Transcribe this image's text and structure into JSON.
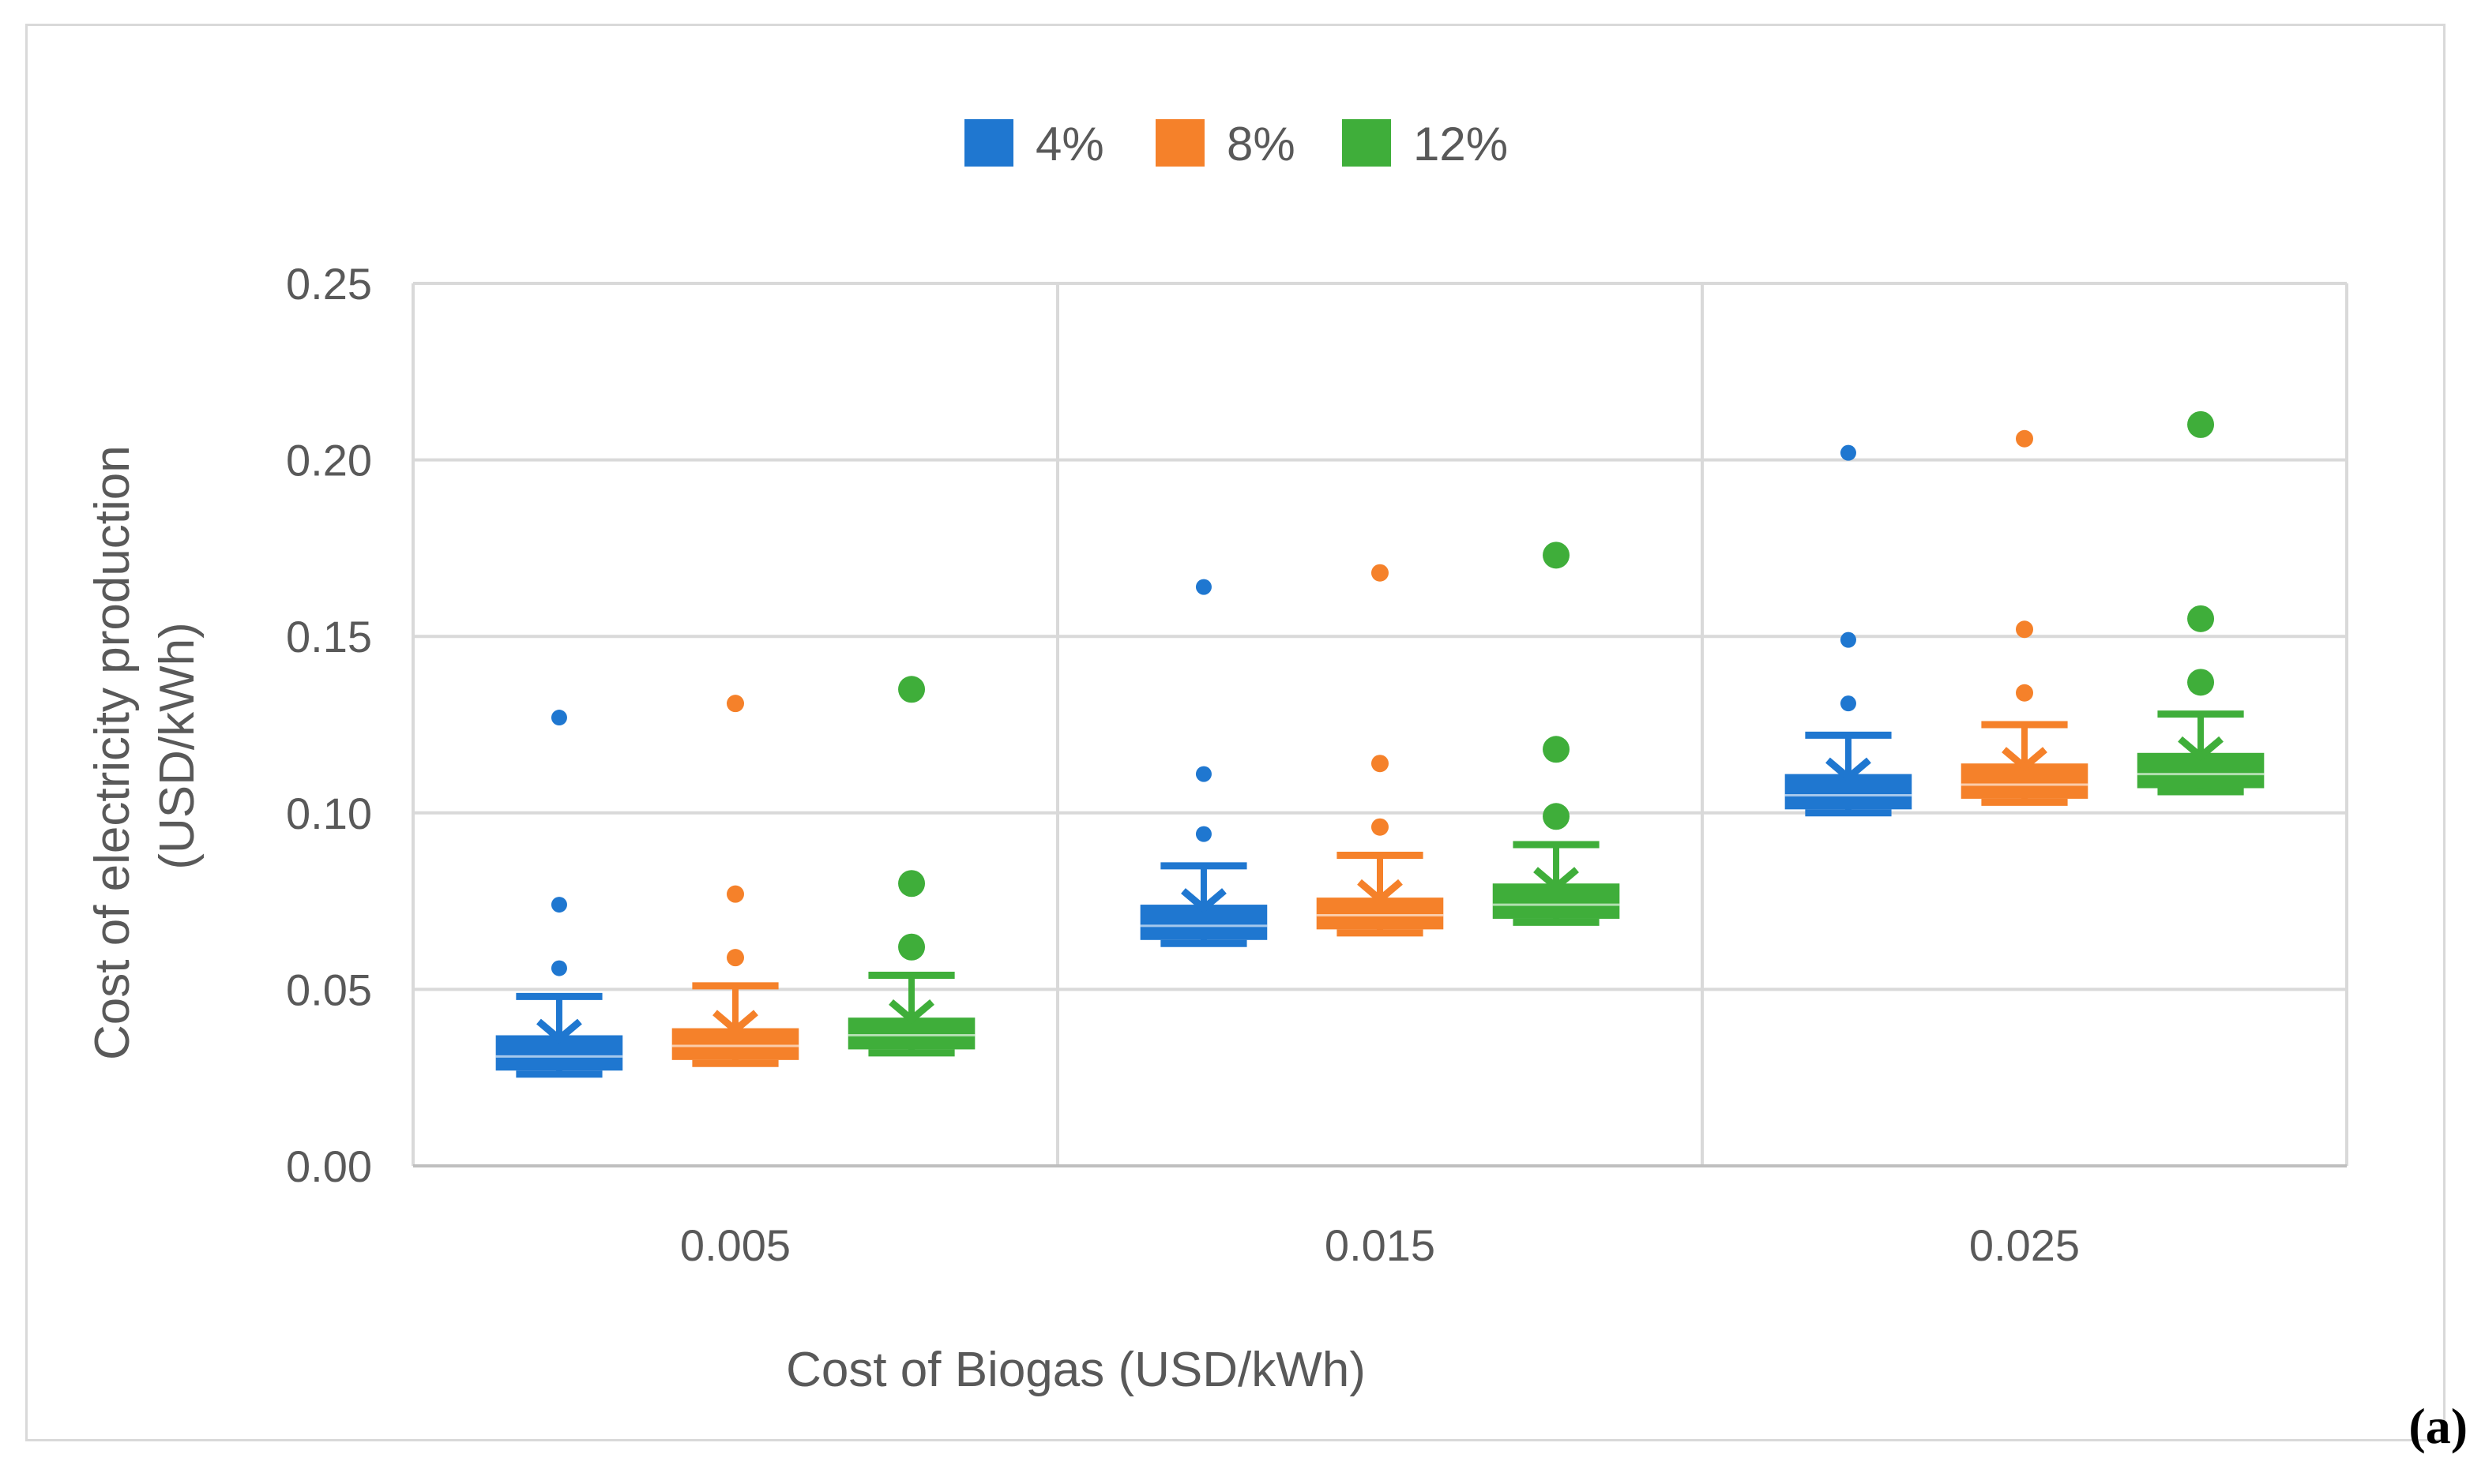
{
  "chart_data": {
    "type": "box",
    "title": "",
    "xlabel": "Cost of Biogas (USD/kWh)",
    "ylabel_lines": [
      "Cost of electricity production",
      "(USD/kWh)"
    ],
    "ylim": [
      0,
      0.25
    ],
    "y_ticks": [
      0.0,
      0.05,
      0.1,
      0.15,
      0.2,
      0.25
    ],
    "y_tick_labels": [
      "0.00",
      "0.05",
      "0.10",
      "0.15",
      "0.20",
      "0.25"
    ],
    "grid": true,
    "legend_position": "top-center",
    "categories": [
      "0.005",
      "0.015",
      "0.025"
    ],
    "series": [
      {
        "name": "4%",
        "color": "#1f77d0",
        "boxes": [
          {
            "whisker_low": 0.026,
            "q1": 0.027,
            "median": 0.031,
            "q3": 0.037,
            "whisker_high": 0.048,
            "outliers": [
              0.056,
              0.074,
              0.127
            ]
          },
          {
            "whisker_low": 0.063,
            "q1": 0.064,
            "median": 0.068,
            "q3": 0.074,
            "whisker_high": 0.085,
            "outliers": [
              0.094,
              0.111,
              0.164
            ]
          },
          {
            "whisker_low": 0.1,
            "q1": 0.101,
            "median": 0.105,
            "q3": 0.111,
            "whisker_high": 0.122,
            "outliers": [
              0.131,
              0.149,
              0.202
            ]
          }
        ]
      },
      {
        "name": "8%",
        "color": "#f5812a",
        "boxes": [
          {
            "whisker_low": 0.029,
            "q1": 0.03,
            "median": 0.034,
            "q3": 0.039,
            "whisker_high": 0.051,
            "outliers": [
              0.059,
              0.077,
              0.131
            ]
          },
          {
            "whisker_low": 0.066,
            "q1": 0.067,
            "median": 0.071,
            "q3": 0.076,
            "whisker_high": 0.088,
            "outliers": [
              0.096,
              0.114,
              0.168
            ]
          },
          {
            "whisker_low": 0.103,
            "q1": 0.104,
            "median": 0.108,
            "q3": 0.114,
            "whisker_high": 0.125,
            "outliers": [
              0.134,
              0.152,
              0.206
            ]
          }
        ]
      },
      {
        "name": "12%",
        "color": "#3fae3a",
        "boxes": [
          {
            "whisker_low": 0.032,
            "q1": 0.033,
            "median": 0.037,
            "q3": 0.042,
            "whisker_high": 0.054,
            "outliers": [
              0.062,
              0.08,
              0.135
            ]
          },
          {
            "whisker_low": 0.069,
            "q1": 0.07,
            "median": 0.074,
            "q3": 0.08,
            "whisker_high": 0.091,
            "outliers": [
              0.099,
              0.118,
              0.173
            ]
          },
          {
            "whisker_low": 0.106,
            "q1": 0.107,
            "median": 0.111,
            "q3": 0.117,
            "whisker_high": 0.128,
            "outliers": [
              0.137,
              0.155,
              0.21
            ]
          }
        ]
      }
    ]
  },
  "panel_label": "(a)",
  "colors": {
    "grid": "#d9d9d9",
    "text": "#595959",
    "axis": "#bfbfbf"
  }
}
